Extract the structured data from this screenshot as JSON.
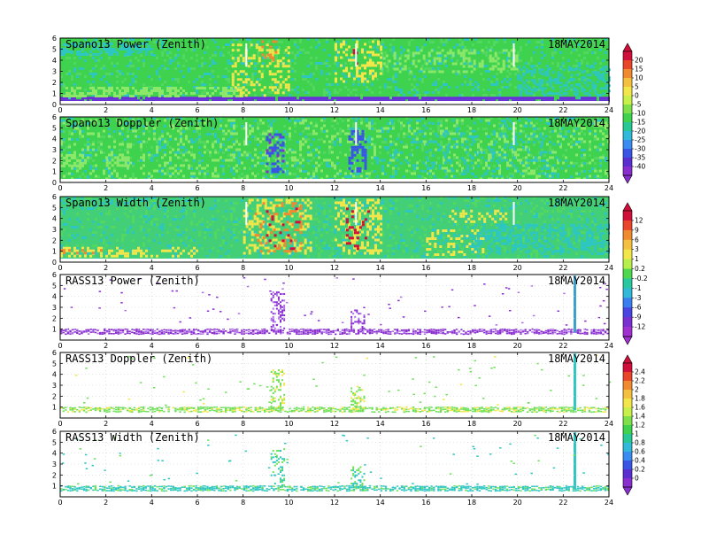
{
  "chart_data": [
    {
      "type": "heatmap",
      "title": "Spano13 Power (Zenith)",
      "date": "18MAY2014",
      "xlim": [
        0,
        24
      ],
      "ylim": [
        0,
        6
      ],
      "xticks": [
        0,
        2,
        4,
        6,
        8,
        10,
        12,
        14,
        16,
        18,
        20,
        22,
        24
      ],
      "yticks": [
        0,
        1,
        2,
        3,
        4,
        5,
        6
      ],
      "dominant": "green/cyan (≈ -10 to -20)",
      "notes": "persistent violet band near 0.5 km; yellow/red patches around 8–10 h and 12–14 h",
      "colorbar": 1
    },
    {
      "type": "heatmap",
      "title": "Spano13 Doppler (Zenith)",
      "date": "18MAY2014",
      "xlim": [
        0,
        24
      ],
      "ylim": [
        0,
        6
      ],
      "xticks": [
        0,
        2,
        4,
        6,
        8,
        10,
        12,
        14,
        16,
        18,
        20,
        22,
        24
      ],
      "yticks": [
        0,
        1,
        2,
        3,
        4,
        5,
        6
      ],
      "dominant": "green",
      "notes": "blue streaks near 9.5 h and 13 h",
      "colorbar": 1
    },
    {
      "type": "heatmap",
      "title": "Spano13 Width (Zenith)",
      "date": "18MAY2014",
      "xlim": [
        0,
        24
      ],
      "ylim": [
        0,
        6
      ],
      "xticks": [
        0,
        2,
        4,
        6,
        8,
        10,
        12,
        14,
        16,
        18,
        20,
        22,
        24
      ],
      "yticks": [
        0,
        1,
        2,
        3,
        4,
        5,
        6
      ],
      "dominant": "green/cyan",
      "notes": "yellow/orange/red clusters 8–11 h, 12–14 h, 17–19 h",
      "colorbar": 2
    },
    {
      "type": "scatter",
      "title": "RASS13 Power (Zenith)",
      "date": "18MAY2014",
      "xlim": [
        0,
        24
      ],
      "ylim": [
        0,
        6
      ],
      "xticks": [
        0,
        2,
        4,
        6,
        8,
        10,
        12,
        14,
        16,
        18,
        20,
        22,
        24
      ],
      "yticks": [
        1,
        2,
        3,
        4,
        5,
        6
      ],
      "dominant": "purple",
      "notes": "band at ~0.7–1.0 km; spikes at 9.3–9.7 h and ~13 h; vertical column at 22.5 h",
      "colorbar": 2
    },
    {
      "type": "scatter",
      "title": "RASS13 Doppler (Zenith)",
      "date": "18MAY2014",
      "xlim": [
        0,
        24
      ],
      "ylim": [
        0,
        6
      ],
      "xticks": [
        0,
        2,
        4,
        6,
        8,
        10,
        12,
        14,
        16,
        18,
        20,
        22,
        24
      ],
      "yticks": [
        1,
        2,
        3,
        4,
        5,
        6
      ],
      "dominant": "green/yellow",
      "notes": "band at ~0.7–1.0 km; spikes at 9.3–9.7 h and ~13 h; vertical column at 22.5 h",
      "colorbar": 3
    },
    {
      "type": "scatter",
      "title": "RASS13 Width (Zenith)",
      "date": "18MAY2014",
      "xlim": [
        0,
        24
      ],
      "ylim": [
        0,
        6
      ],
      "xticks": [
        0,
        2,
        4,
        6,
        8,
        10,
        12,
        14,
        16,
        18,
        20,
        22,
        24
      ],
      "yticks": [
        1,
        2,
        3,
        4,
        5,
        6
      ],
      "dominant": "green/cyan",
      "notes": "band at ~0.7–1.0 km; spikes at 9.3–9.7 h and ~13 h; vertical column at 22.5 h",
      "colorbar": 3
    }
  ],
  "colorbars": [
    {
      "labels": [
        "20",
        "15",
        "10",
        "5",
        "0",
        "-5",
        "-10",
        "-15",
        "-20",
        "-25",
        "-30",
        "-35",
        "-40"
      ],
      "colors": [
        "#d0103a",
        "#e8452a",
        "#f08a30",
        "#f4c040",
        "#f2e64a",
        "#c8ef4a",
        "#7fe04a",
        "#3fd24f",
        "#28c896",
        "#32b8d8",
        "#3a8cf0",
        "#3a55e6",
        "#5a2fd0",
        "#8a2fcf"
      ]
    },
    {
      "labels": [
        "12",
        "9",
        "6",
        "3",
        "1",
        "0.2",
        "-0.2",
        "-1",
        "-3",
        "-6",
        "-9",
        "-12"
      ],
      "colors": [
        "#d0103a",
        "#e8452a",
        "#f08a30",
        "#f4c040",
        "#f2e64a",
        "#b8ef4a",
        "#4fd84f",
        "#2ac8a0",
        "#32b8d8",
        "#3a7ef0",
        "#4a45e0",
        "#7a2fd0",
        "#a030d0"
      ]
    },
    {
      "labels": [
        "2.4",
        "2.2",
        "2",
        "1.8",
        "1.6",
        "1.4",
        "1.2",
        "1",
        "0.8",
        "0.6",
        "0.4",
        "0.2",
        "0"
      ],
      "colors": [
        "#d0103a",
        "#e8452a",
        "#f08a30",
        "#f4c040",
        "#f2e64a",
        "#c8ef4a",
        "#7fe04a",
        "#3fd24f",
        "#28c896",
        "#32b8d8",
        "#3a8cf0",
        "#3a55e6",
        "#5a2fd0",
        "#8a2fcf"
      ]
    }
  ],
  "palette": {
    "green": "#3fd24f",
    "light_green": "#8de86a",
    "cyan": "#2ec6c0",
    "yellow": "#f2e64a",
    "orange": "#f08a30",
    "red": "#d0103a",
    "blue": "#3a55e6",
    "purple": "#8a2fcf",
    "violet": "#6a2fd8"
  }
}
